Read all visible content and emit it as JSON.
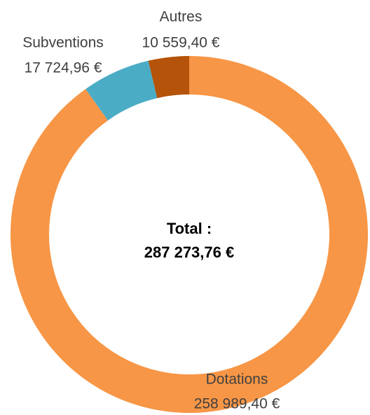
{
  "chart_data": {
    "type": "donut",
    "categories": [
      "Dotations",
      "Subventions",
      "Autres"
    ],
    "values": [
      258989.4,
      17724.96,
      10559.4
    ],
    "value_labels": [
      "258 989,40 €",
      "17 724,96 €",
      "10 559,40 €"
    ],
    "colors": [
      "#f79646",
      "#4bacc6",
      "#b45309"
    ],
    "center_title": "Total :",
    "center_value": "287 273,76 €"
  }
}
